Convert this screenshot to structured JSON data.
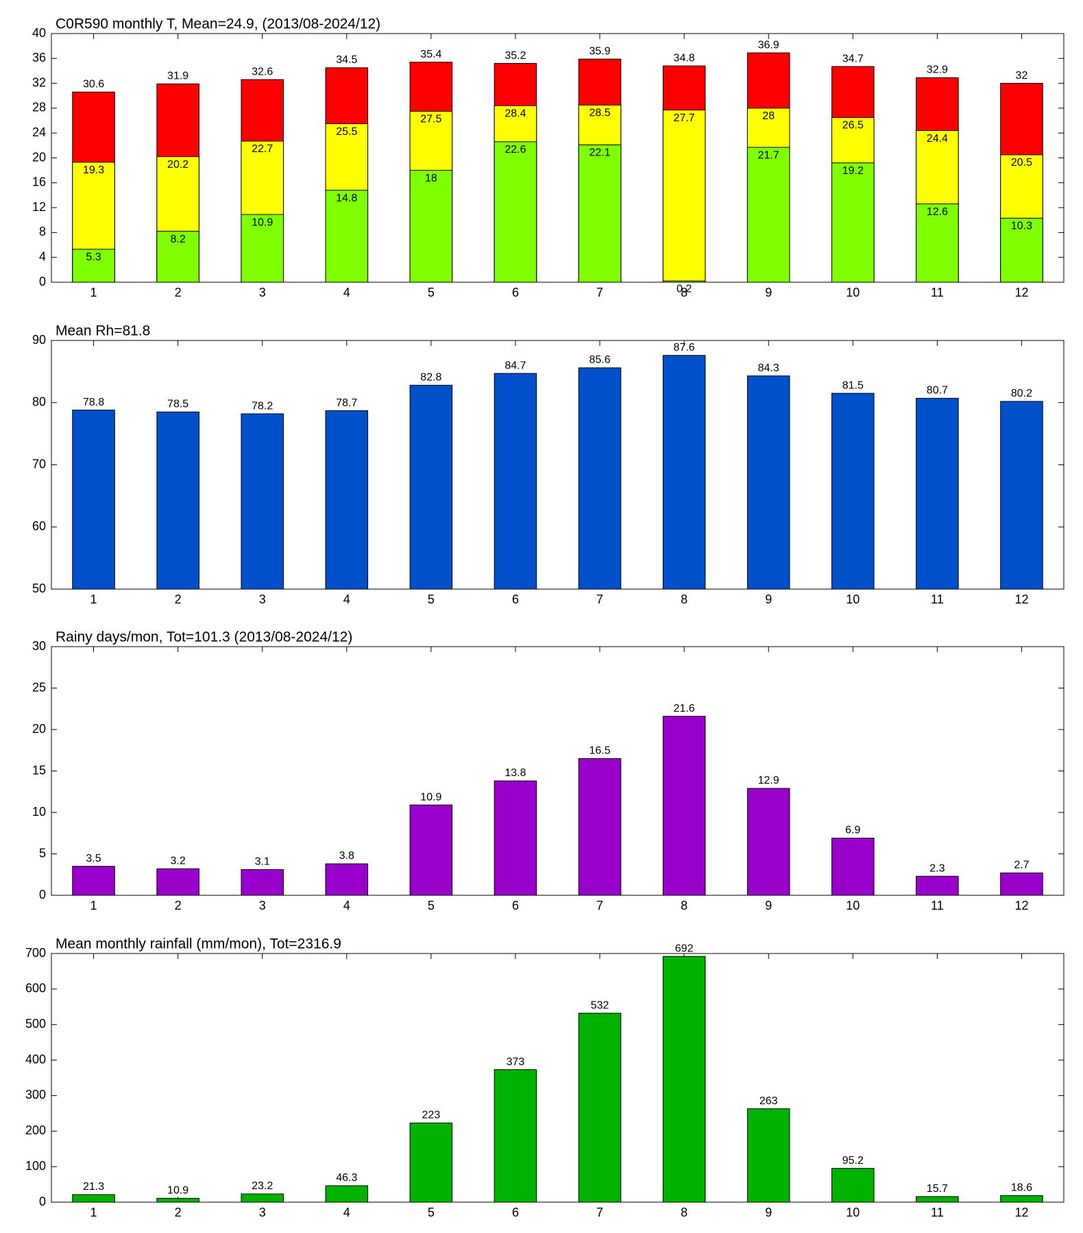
{
  "chart_data": [
    {
      "type": "bar",
      "barmode": "overlay",
      "title": "C0R590 monthly T, Mean=24.9, (2013/08-2024/12)",
      "categories": [
        "1",
        "2",
        "3",
        "4",
        "5",
        "6",
        "7",
        "8",
        "9",
        "10",
        "11",
        "12"
      ],
      "ylim": [
        0,
        40
      ],
      "yticks": [
        0,
        4,
        8,
        12,
        16,
        20,
        24,
        28,
        32,
        36,
        40
      ],
      "series": [
        {
          "color": "#ff0000",
          "values": [
            30.6,
            31.9,
            32.6,
            34.5,
            35.4,
            35.2,
            35.9,
            34.8,
            36.9,
            34.7,
            32.9,
            32
          ]
        },
        {
          "color": "#ffff00",
          "values": [
            19.3,
            20.2,
            22.7,
            25.5,
            27.5,
            28.4,
            28.5,
            27.7,
            28,
            26.5,
            24.4,
            20.5
          ]
        },
        {
          "color": "#80ff00",
          "values": [
            5.3,
            8.2,
            10.9,
            14.8,
            18,
            22.6,
            22.1,
            0.2,
            21.7,
            19.2,
            12.6,
            10.3
          ]
        }
      ]
    },
    {
      "type": "bar",
      "title": "Mean Rh=81.8",
      "categories": [
        "1",
        "2",
        "3",
        "4",
        "5",
        "6",
        "7",
        "8",
        "9",
        "10",
        "11",
        "12"
      ],
      "ylim": [
        50,
        90
      ],
      "yticks": [
        50,
        60,
        70,
        80,
        90
      ],
      "series": [
        {
          "color": "#0050cc",
          "values": [
            78.8,
            78.5,
            78.2,
            78.7,
            82.8,
            84.7,
            85.6,
            87.6,
            84.3,
            81.5,
            80.7,
            80.2
          ]
        }
      ]
    },
    {
      "type": "bar",
      "title": "Rainy days/mon, Tot=101.3 (2013/08-2024/12)",
      "categories": [
        "1",
        "2",
        "3",
        "4",
        "5",
        "6",
        "7",
        "8",
        "9",
        "10",
        "11",
        "12"
      ],
      "ylim": [
        0,
        30
      ],
      "yticks": [
        0,
        5,
        10,
        15,
        20,
        25,
        30
      ],
      "series": [
        {
          "color": "#9900cc",
          "values": [
            3.5,
            3.2,
            3.1,
            3.8,
            10.9,
            13.8,
            16.5,
            21.6,
            12.9,
            6.9,
            2.3,
            2.7
          ]
        }
      ]
    },
    {
      "type": "bar",
      "title": "Mean monthly rainfall (mm/mon), Tot=2316.9",
      "categories": [
        "1",
        "2",
        "3",
        "4",
        "5",
        "6",
        "7",
        "8",
        "9",
        "10",
        "11",
        "12"
      ],
      "ylim": [
        0,
        700
      ],
      "yticks": [
        0,
        100,
        200,
        300,
        400,
        500,
        600,
        700
      ],
      "series": [
        {
          "color": "#00b300",
          "values": [
            21.3,
            10.9,
            23.2,
            46.3,
            223,
            373,
            532,
            692,
            263,
            95.2,
            15.7,
            18.6
          ]
        }
      ]
    }
  ]
}
